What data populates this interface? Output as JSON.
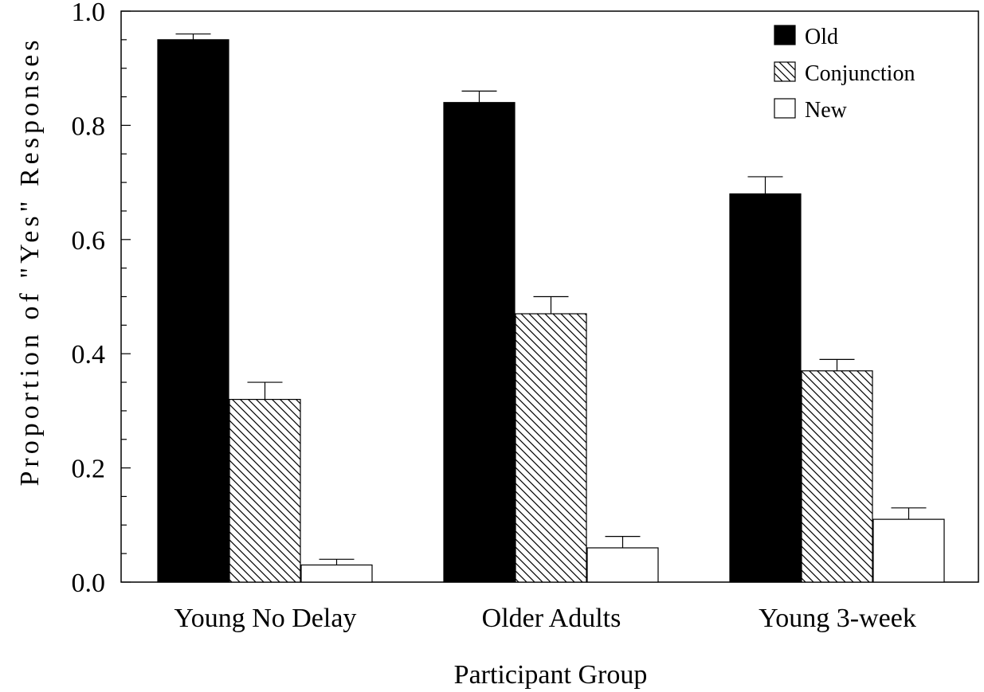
{
  "chart_data": {
    "type": "bar",
    "title": "",
    "xlabel": "Participant Group",
    "ylabel": "Proportion of \"Yes\" Responses",
    "ylim": [
      0,
      1.0
    ],
    "y_major_ticks": [
      0.0,
      0.2,
      0.4,
      0.6,
      0.8,
      1.0
    ],
    "y_tick_labels": [
      "0.0",
      "0.2",
      "0.4",
      "0.6",
      "0.8",
      "1.0"
    ],
    "y_minor_step": 0.05,
    "categories": [
      "Young No Delay",
      "Older Adults",
      "Young 3-week"
    ],
    "series": [
      {
        "name": "Old",
        "fill": "solid",
        "color": "#000000",
        "values": [
          0.95,
          0.84,
          0.68
        ],
        "errors": [
          0.01,
          0.02,
          0.03
        ]
      },
      {
        "name": "Conjunction",
        "fill": "hatch",
        "color": "#000000",
        "values": [
          0.32,
          0.47,
          0.37
        ],
        "errors": [
          0.03,
          0.03,
          0.02
        ]
      },
      {
        "name": "New",
        "fill": "empty",
        "color": "#ffffff",
        "values": [
          0.03,
          0.06,
          0.11
        ],
        "errors": [
          0.01,
          0.02,
          0.02
        ]
      }
    ],
    "legend_position": "top-right",
    "grid": false
  }
}
